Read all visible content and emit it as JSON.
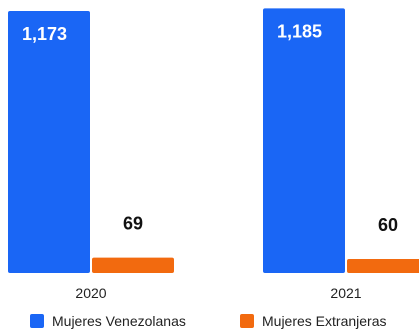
{
  "chart_data": {
    "type": "bar",
    "categories": [
      "2020",
      "2021"
    ],
    "series": [
      {
        "name": "Mujeres Venezolanas",
        "values": [
          1173,
          1185
        ],
        "labels": [
          "1,173",
          "1,185"
        ],
        "color": "#1a66f5"
      },
      {
        "name": "Mujeres Extranjeras",
        "values": [
          69,
          60
        ],
        "labels": [
          "69",
          "60"
        ],
        "color": "#f26a0f"
      }
    ],
    "ylim": [
      0,
      1200
    ],
    "grid": false,
    "legend": "bottom"
  }
}
